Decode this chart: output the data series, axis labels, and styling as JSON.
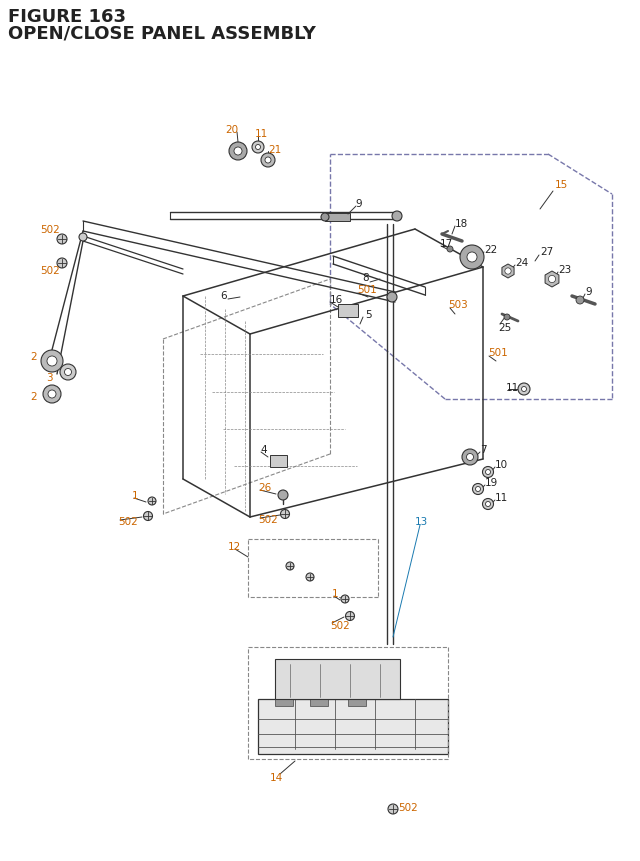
{
  "bg_color": "#ffffff",
  "title_line1": "FIGURE 163",
  "title_line2": "OPEN/CLOSE PANEL ASSEMBLY",
  "orange": "#cc6600",
  "blue": "#1a7ab0",
  "dark": "#222222",
  "teal": "#007b7b",
  "line_color": "#333333",
  "dashed_color": "#666699"
}
